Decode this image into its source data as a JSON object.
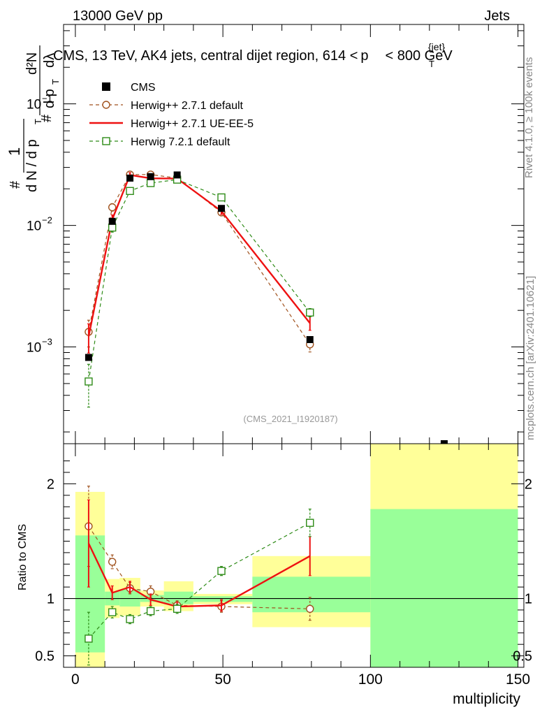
{
  "header": {
    "left": "13000 GeV pp",
    "right": "Jets"
  },
  "side_labels": {
    "rivet": "Rivet 4.1.0, ≥ 100k events",
    "site": "mcplots.cern.ch [arXiv:2401.10621]"
  },
  "colors": {
    "cms": "#000000",
    "herwig_default": "#a0521e",
    "herwig_ueee5": "#ee1111",
    "herwig72": "#2e8b17",
    "band_yellow": "#ffff99",
    "band_green": "#99ff99"
  },
  "chart_data": [
    {
      "type": "line",
      "panel": "main",
      "title": "CMS, 13 TeV, AK4 jets, central dijet region, 614 < p_T^{jet} < 800 GeV",
      "title_parts": {
        "main": "CMS, 13 TeV, AK4 jets, central dijet region, 614 <",
        "p": "p",
        "sub": "T",
        "sup": "{jet}",
        "tail": "< 800 GeV"
      },
      "ylabel_parts": {
        "one": "1",
        "hash": "#",
        "lower": "d N / d p",
        "lower_sub": "T",
        "upper": "d²N",
        "upper_b": "d p",
        "upper_b_sub": "T",
        "upper_c": "dλ"
      },
      "yscale": "log",
      "ylim": [
        0.00016,
        0.45
      ],
      "xlim": [
        -4,
        152
      ],
      "y_ticks": [
        {
          "value": 0.001,
          "base": "10",
          "exp": "−3"
        },
        {
          "value": 0.01,
          "base": "10",
          "exp": "−2"
        },
        {
          "value": 0.1,
          "base": "10",
          "exp": "−1"
        }
      ],
      "watermark": "(CMS_2021_I1920187)",
      "legend": {
        "placement": "top-left",
        "entries": [
          "CMS",
          "Herwig++ 2.7.1 default",
          "Herwig++ 2.7.1 UE-EE-5",
          "Herwig 7.2.1 default"
        ]
      },
      "series": [
        {
          "name": "CMS",
          "style": "square-marker",
          "x": [
            4.5,
            12.5,
            18.5,
            25.5,
            34.5,
            49.5,
            79.5,
            125
          ],
          "y": [
            0.00082,
            0.0108,
            0.0245,
            0.0252,
            0.026,
            0.0138,
            0.00115,
            0.00016
          ]
        },
        {
          "name": "Herwig++ 2.7.1 default",
          "style": "dashed-open-circle",
          "x": [
            4.5,
            12.5,
            18.5,
            25.5,
            34.5,
            49.5,
            79.5
          ],
          "y": [
            0.00133,
            0.0141,
            0.0262,
            0.0262,
            0.0245,
            0.0128,
            0.00105
          ],
          "err": [
            0.00033,
            0.001,
            0.0012,
            0.0012,
            0.0012,
            0.0008,
            0.00014
          ]
        },
        {
          "name": "Herwig++ 2.7.1 UE-EE-5",
          "style": "solid-line",
          "x": [
            4.5,
            12.5,
            18.5,
            25.5,
            34.5,
            49.5,
            79.5
          ],
          "y": [
            0.00122,
            0.0112,
            0.026,
            0.0244,
            0.0243,
            0.0131,
            0.00157
          ],
          "err": [
            0.00033,
            0.001,
            0.0012,
            0.0012,
            0.0012,
            0.0008,
            0.0002
          ]
        },
        {
          "name": "Herwig 7.2.1 default",
          "style": "dashed-open-square",
          "x": [
            4.5,
            12.5,
            18.5,
            25.5,
            34.5,
            49.5,
            79.5
          ],
          "y": [
            0.00052,
            0.0096,
            0.0192,
            0.0223,
            0.0238,
            0.017,
            0.00192
          ],
          "err": [
            0.0002,
            0.0008,
            0.001,
            0.001,
            0.001,
            0.0008,
            0.00015
          ]
        }
      ]
    },
    {
      "type": "line",
      "panel": "ratio",
      "ylabel": "Ratio to CMS",
      "xlabel": "multiplicity",
      "xlim": [
        -4,
        152
      ],
      "ylim": [
        0.4,
        2.35
      ],
      "x_ticks": [
        0,
        50,
        100,
        150
      ],
      "y_ticks": [
        0.5,
        1,
        2
      ],
      "reference_line": 1,
      "bands": [
        {
          "x": [
            0,
            10
          ],
          "yellow": [
            0.4,
            1.93
          ],
          "green": [
            0.53,
            1.55
          ]
        },
        {
          "x": [
            10,
            15
          ],
          "yellow": [
            0.83,
            1.17
          ],
          "green": [
            0.94,
            1.06
          ]
        },
        {
          "x": [
            15,
            22
          ],
          "yellow": [
            0.85,
            1.18
          ],
          "green": [
            0.93,
            1.08
          ]
        },
        {
          "x": [
            22,
            30
          ],
          "yellow": [
            0.93,
            1.07
          ],
          "green": [
            0.97,
            1.03
          ]
        },
        {
          "x": [
            30,
            40
          ],
          "yellow": [
            0.89,
            1.15
          ],
          "green": [
            0.95,
            1.06
          ]
        },
        {
          "x": [
            40,
            60
          ],
          "yellow": [
            0.95,
            1.04
          ],
          "green": [
            0.97,
            1.02
          ]
        },
        {
          "x": [
            60,
            100
          ],
          "yellow": [
            0.75,
            1.37
          ],
          "green": [
            0.88,
            1.19
          ]
        },
        {
          "x": [
            100,
            150
          ],
          "yellow": [
            0.4,
            2.35
          ],
          "green": [
            0.4,
            1.78
          ]
        }
      ],
      "series": [
        {
          "name": "Herwig++ 2.7.1 default",
          "x": [
            4.5,
            12.5,
            18.5,
            25.5,
            34.5,
            49.5,
            79.5
          ],
          "y": [
            1.63,
            1.32,
            1.09,
            1.06,
            0.94,
            0.93,
            0.91
          ],
          "err": [
            0.35,
            0.06,
            0.05,
            0.05,
            0.04,
            0.05,
            0.1
          ]
        },
        {
          "name": "Herwig++ 2.7.1 UE-EE-5",
          "x": [
            4.5,
            12.5,
            18.5,
            25.5,
            34.5,
            49.5,
            79.5
          ],
          "y": [
            1.48,
            1.05,
            1.1,
            0.99,
            0.93,
            0.94,
            1.37
          ],
          "err": [
            0.38,
            0.06,
            0.05,
            0.05,
            0.04,
            0.05,
            0.17
          ]
        },
        {
          "name": "Herwig 7.2.1 default",
          "x": [
            4.5,
            12.5,
            18.5,
            25.5,
            34.5,
            49.5,
            79.5
          ],
          "y": [
            0.65,
            0.88,
            0.82,
            0.89,
            0.91,
            1.24,
            1.66
          ],
          "err": [
            0.23,
            0.05,
            0.04,
            0.04,
            0.04,
            0.04,
            0.12
          ]
        }
      ]
    }
  ]
}
